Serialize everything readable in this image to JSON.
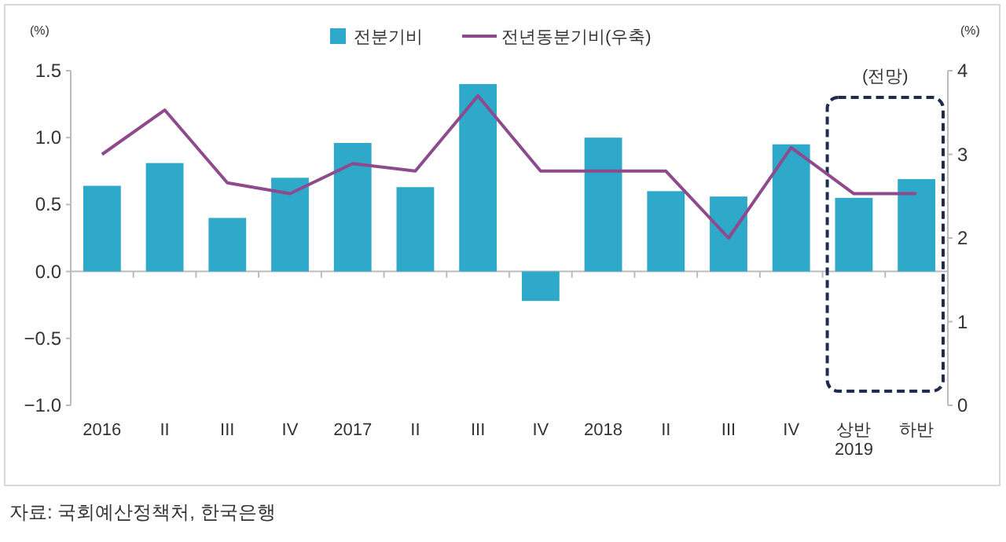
{
  "chart_data": {
    "type": "bar",
    "categories": [
      "2016",
      "II",
      "III",
      "IV",
      "2017",
      "II",
      "III",
      "IV",
      "2018",
      "II",
      "III",
      "IV",
      "상반\n2019",
      "하반"
    ],
    "series": [
      {
        "name": "전분기비",
        "color": "#2ea9c9",
        "values": [
          0.64,
          0.81,
          0.4,
          0.7,
          0.96,
          0.63,
          1.4,
          -0.22,
          1.0,
          0.6,
          0.56,
          0.95,
          0.55,
          0.69
        ]
      },
      {
        "name": "전년동분기비(우축)",
        "type": "line",
        "axis": "y2",
        "color": "#8e4a8c",
        "values": [
          3.0,
          3.53,
          2.66,
          2.53,
          2.89,
          2.8,
          3.7,
          2.8,
          2.8,
          2.8,
          2.0,
          3.08,
          2.53,
          2.53
        ]
      }
    ],
    "ylim": [
      -1.0,
      1.5
    ],
    "yticks": [
      {
        "value": -1,
        "label": "−1.0"
      },
      {
        "value": -0.5,
        "label": "−0.5"
      },
      {
        "value": 0,
        "label": "0.0"
      },
      {
        "value": 0.5,
        "label": "0.5"
      },
      {
        "value": 1,
        "label": "1.0"
      },
      {
        "value": 1.5,
        "label": "1.5"
      }
    ],
    "y2lim": [
      0,
      4
    ],
    "y2ticks": [
      0,
      1,
      2,
      3,
      4
    ],
    "ylabel": "(%)",
    "y2label": "(%)",
    "legend": "top",
    "annotations": [
      "자료: 국회예산정책처, 한국은행",
      "(전망)"
    ]
  }
}
